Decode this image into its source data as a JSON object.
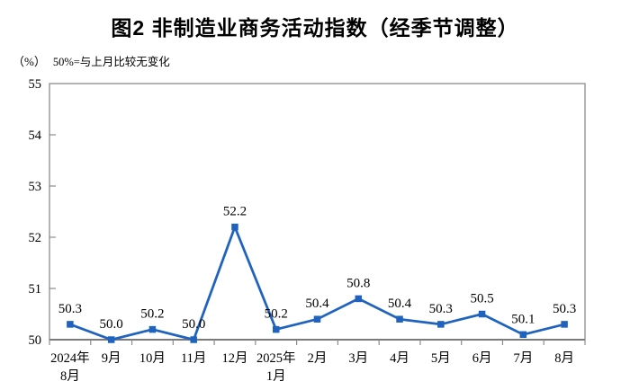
{
  "title": "图2 非制造业商务活动指数（经季节调整）",
  "unit_label": "（%）",
  "subtitle": "50%=与上月比较无变化",
  "colors": {
    "line": "#2063BE",
    "marker": "#2063BE",
    "axis": "#8c8c8c",
    "bottom_axis": "#7a7a7a",
    "text": "#000000"
  },
  "chart_data": {
    "type": "line",
    "title": "图2 非制造业商务活动指数（经季节调整）",
    "ylabel": "（%）",
    "annotation": "50%=与上月比较无变化",
    "categories": [
      [
        "2024年",
        "8月"
      ],
      [
        "9月"
      ],
      [
        "10月"
      ],
      [
        "11月"
      ],
      [
        "12月"
      ],
      [
        "2025年",
        "1月"
      ],
      [
        "2月"
      ],
      [
        "3月"
      ],
      [
        "4月"
      ],
      [
        "5月"
      ],
      [
        "6月"
      ],
      [
        "7月"
      ],
      [
        "8月"
      ]
    ],
    "values": [
      50.3,
      50.0,
      50.2,
      50.0,
      52.2,
      50.2,
      50.4,
      50.8,
      50.4,
      50.3,
      50.5,
      50.1,
      50.3
    ],
    "labels": [
      "50.3",
      "50.0",
      "50.2",
      "50.0",
      "52.2",
      "50.2",
      "50.4",
      "50.8",
      "50.4",
      "50.3",
      "50.5",
      "50.1",
      "50.3"
    ],
    "ylim": [
      50,
      55
    ],
    "yticks": [
      50,
      51,
      52,
      53,
      54,
      55
    ],
    "grid": false,
    "legend": "none",
    "marker": "square"
  }
}
